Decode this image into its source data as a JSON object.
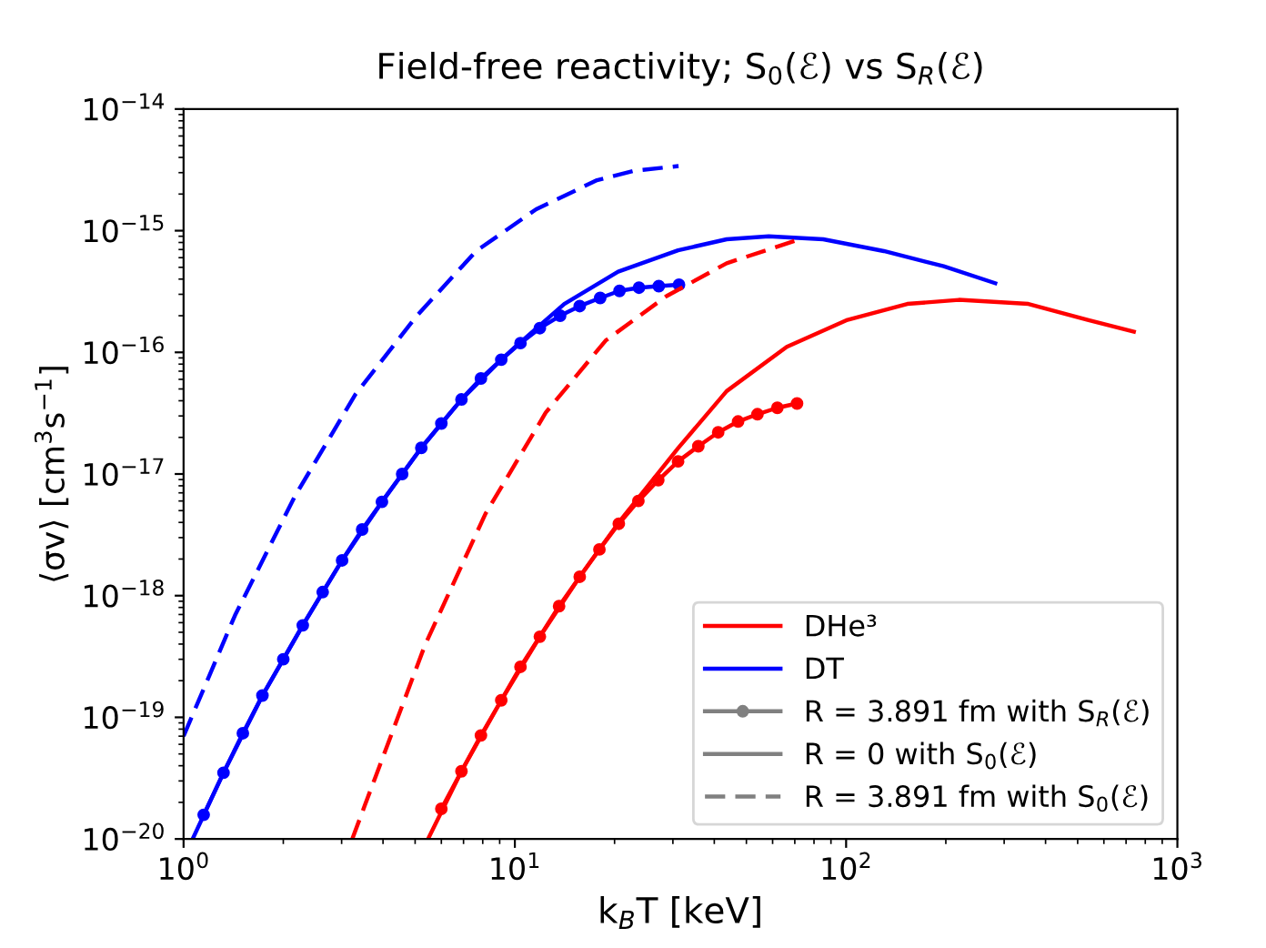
{
  "chart_data": {
    "type": "line",
    "title": "Field-free reactivity; S$_{0}$(ℰ) vs S$_{R}$(ℰ)",
    "xlabel": "k$_{B}$T [keV]",
    "ylabel": "⟨σv⟩ [cm$^{3}$s$^{−1}$]",
    "log": "xy",
    "xlim": [
      1,
      1000
    ],
    "ylim": [
      1e-20,
      1e-14
    ],
    "xticks": [
      {
        "value": 1,
        "label": "10$^{0}$"
      },
      {
        "value": 10,
        "label": "10$^{1}$"
      },
      {
        "value": 100,
        "label": "10$^{2}$"
      },
      {
        "value": 1000,
        "label": "10$^{3}$"
      }
    ],
    "yticks": [
      {
        "value": 1e-20,
        "label": "10$^{−20}$"
      },
      {
        "value": 1e-19,
        "label": "10$^{−19}$"
      },
      {
        "value": 1e-18,
        "label": "10$^{−18}$"
      },
      {
        "value": 1e-17,
        "label": "10$^{−17}$"
      },
      {
        "value": 1e-16,
        "label": "10$^{−16}$"
      },
      {
        "value": 1e-15,
        "label": "10$^{−15}$"
      },
      {
        "value": 1e-14,
        "label": "10$^{−14}$"
      }
    ],
    "grid": false,
    "legend": "bottom right",
    "series": [
      {
        "name": "DHe³",
        "color": "#ff0000",
        "line_style": "solid",
        "marker": "none",
        "x": [
          5.47,
          6.9,
          9.1,
          11.9,
          15.7,
          20.6,
          31.1,
          43.6,
          66.2,
          101,
          153,
          219,
          355,
          536,
          739
        ],
        "values": [
          1e-20,
          3.6e-20,
          1.38e-19,
          4.6e-19,
          1.43e-18,
          4e-18,
          1.63e-17,
          4.8e-17,
          1.11e-16,
          1.85e-16,
          2.5e-16,
          2.7e-16,
          2.5e-16,
          1.85e-16,
          1.48e-16
        ]
      },
      {
        "name": "DT",
        "color": "#0000ff",
        "line_style": "solid",
        "marker": "none",
        "x": [
          1.065,
          1.32,
          1.73,
          2.29,
          3.01,
          3.97,
          5.22,
          6.9,
          9.1,
          10.0,
          14.1,
          20.5,
          31.1,
          43.6,
          58.4,
          85.3,
          130,
          197,
          282
        ],
        "values": [
          1e-20,
          3.5e-20,
          1.51e-19,
          5.7e-19,
          1.95e-18,
          5.9e-18,
          1.64e-17,
          4.1e-17,
          8.7e-17,
          1.1e-16,
          2.5e-16,
          4.6e-16,
          6.9e-16,
          8.5e-16,
          9e-16,
          8.5e-16,
          6.8e-16,
          5.1e-16,
          3.7e-16
        ]
      },
      {
        "name": "R = 3.891 fm with S$_{R}$(ℰ)",
        "color": "#808080",
        "line_style": "solid",
        "marker": "circle"
      },
      {
        "name": "R = 0 with S$_{0}$(ℰ)",
        "color": "#808080",
        "line_style": "solid",
        "marker": "none"
      },
      {
        "name": "R = 3.891 fm with S$_{0}$(ℰ)",
        "color": "#808080",
        "line_style": "dashed",
        "marker": "none"
      },
      {
        "color": "#0000ff",
        "line_style": "solid",
        "marker": "circle",
        "x": [
          1.15,
          1.32,
          1.51,
          1.73,
          2.0,
          2.29,
          2.63,
          3.01,
          3.46,
          3.97,
          4.57,
          5.22,
          6.0,
          6.9,
          7.9,
          9.1,
          10.4,
          11.9,
          13.7,
          15.7,
          18.1,
          20.7,
          23.7,
          27.2,
          31.3
        ],
        "values": [
          1.58e-20,
          3.5e-20,
          7.4e-20,
          1.51e-19,
          3e-19,
          5.7e-19,
          1.07e-18,
          1.95e-18,
          3.5e-18,
          5.9e-18,
          1e-17,
          1.64e-17,
          2.6e-17,
          4.1e-17,
          6.1e-17,
          8.7e-17,
          1.19e-16,
          1.58e-16,
          2e-16,
          2.4e-16,
          2.8e-16,
          3.2e-16,
          3.4e-16,
          3.5e-16,
          3.6e-16
        ]
      },
      {
        "color": "#0000ff",
        "line_style": "dashed",
        "marker": "none",
        "x": [
          1.0,
          1.43,
          2.17,
          3.3,
          5.02,
          7.64,
          11.6,
          17.7,
          22.8,
          31.2
        ],
        "values": [
          7e-20,
          6.9e-19,
          6.6e-18,
          4.5e-17,
          1.95e-16,
          6.8e-16,
          1.5e-15,
          2.6e-15,
          3.1e-15,
          3.4e-15
        ]
      },
      {
        "color": "#ff0000",
        "line_style": "solid",
        "marker": "circle",
        "x": [
          6.0,
          6.9,
          7.9,
          9.1,
          10.4,
          11.9,
          13.6,
          15.7,
          18.0,
          20.6,
          23.6,
          27.1,
          31.1,
          35.8,
          41.1,
          47.2,
          54.0,
          62.0,
          71.1
        ],
        "values": [
          1.77e-20,
          3.6e-20,
          7.1e-20,
          1.38e-19,
          2.6e-19,
          4.6e-19,
          8.2e-19,
          1.43e-18,
          2.4e-18,
          3.9e-18,
          6e-18,
          8.9e-18,
          1.27e-17,
          1.69e-17,
          2.2e-17,
          2.7e-17,
          3.1e-17,
          3.5e-17,
          3.8e-17
        ]
      },
      {
        "color": "#ff0000",
        "line_style": "dashed",
        "marker": "none",
        "x": [
          3.23,
          3.52,
          5.35,
          8.15,
          12.4,
          18.8,
          28.7,
          43.6,
          70.6
        ],
        "values": [
          1e-20,
          1.87e-20,
          3.9e-19,
          4.7e-18,
          3.2e-17,
          1.25e-16,
          2.9e-16,
          5.4e-16,
          8.3e-16
        ]
      }
    ]
  }
}
